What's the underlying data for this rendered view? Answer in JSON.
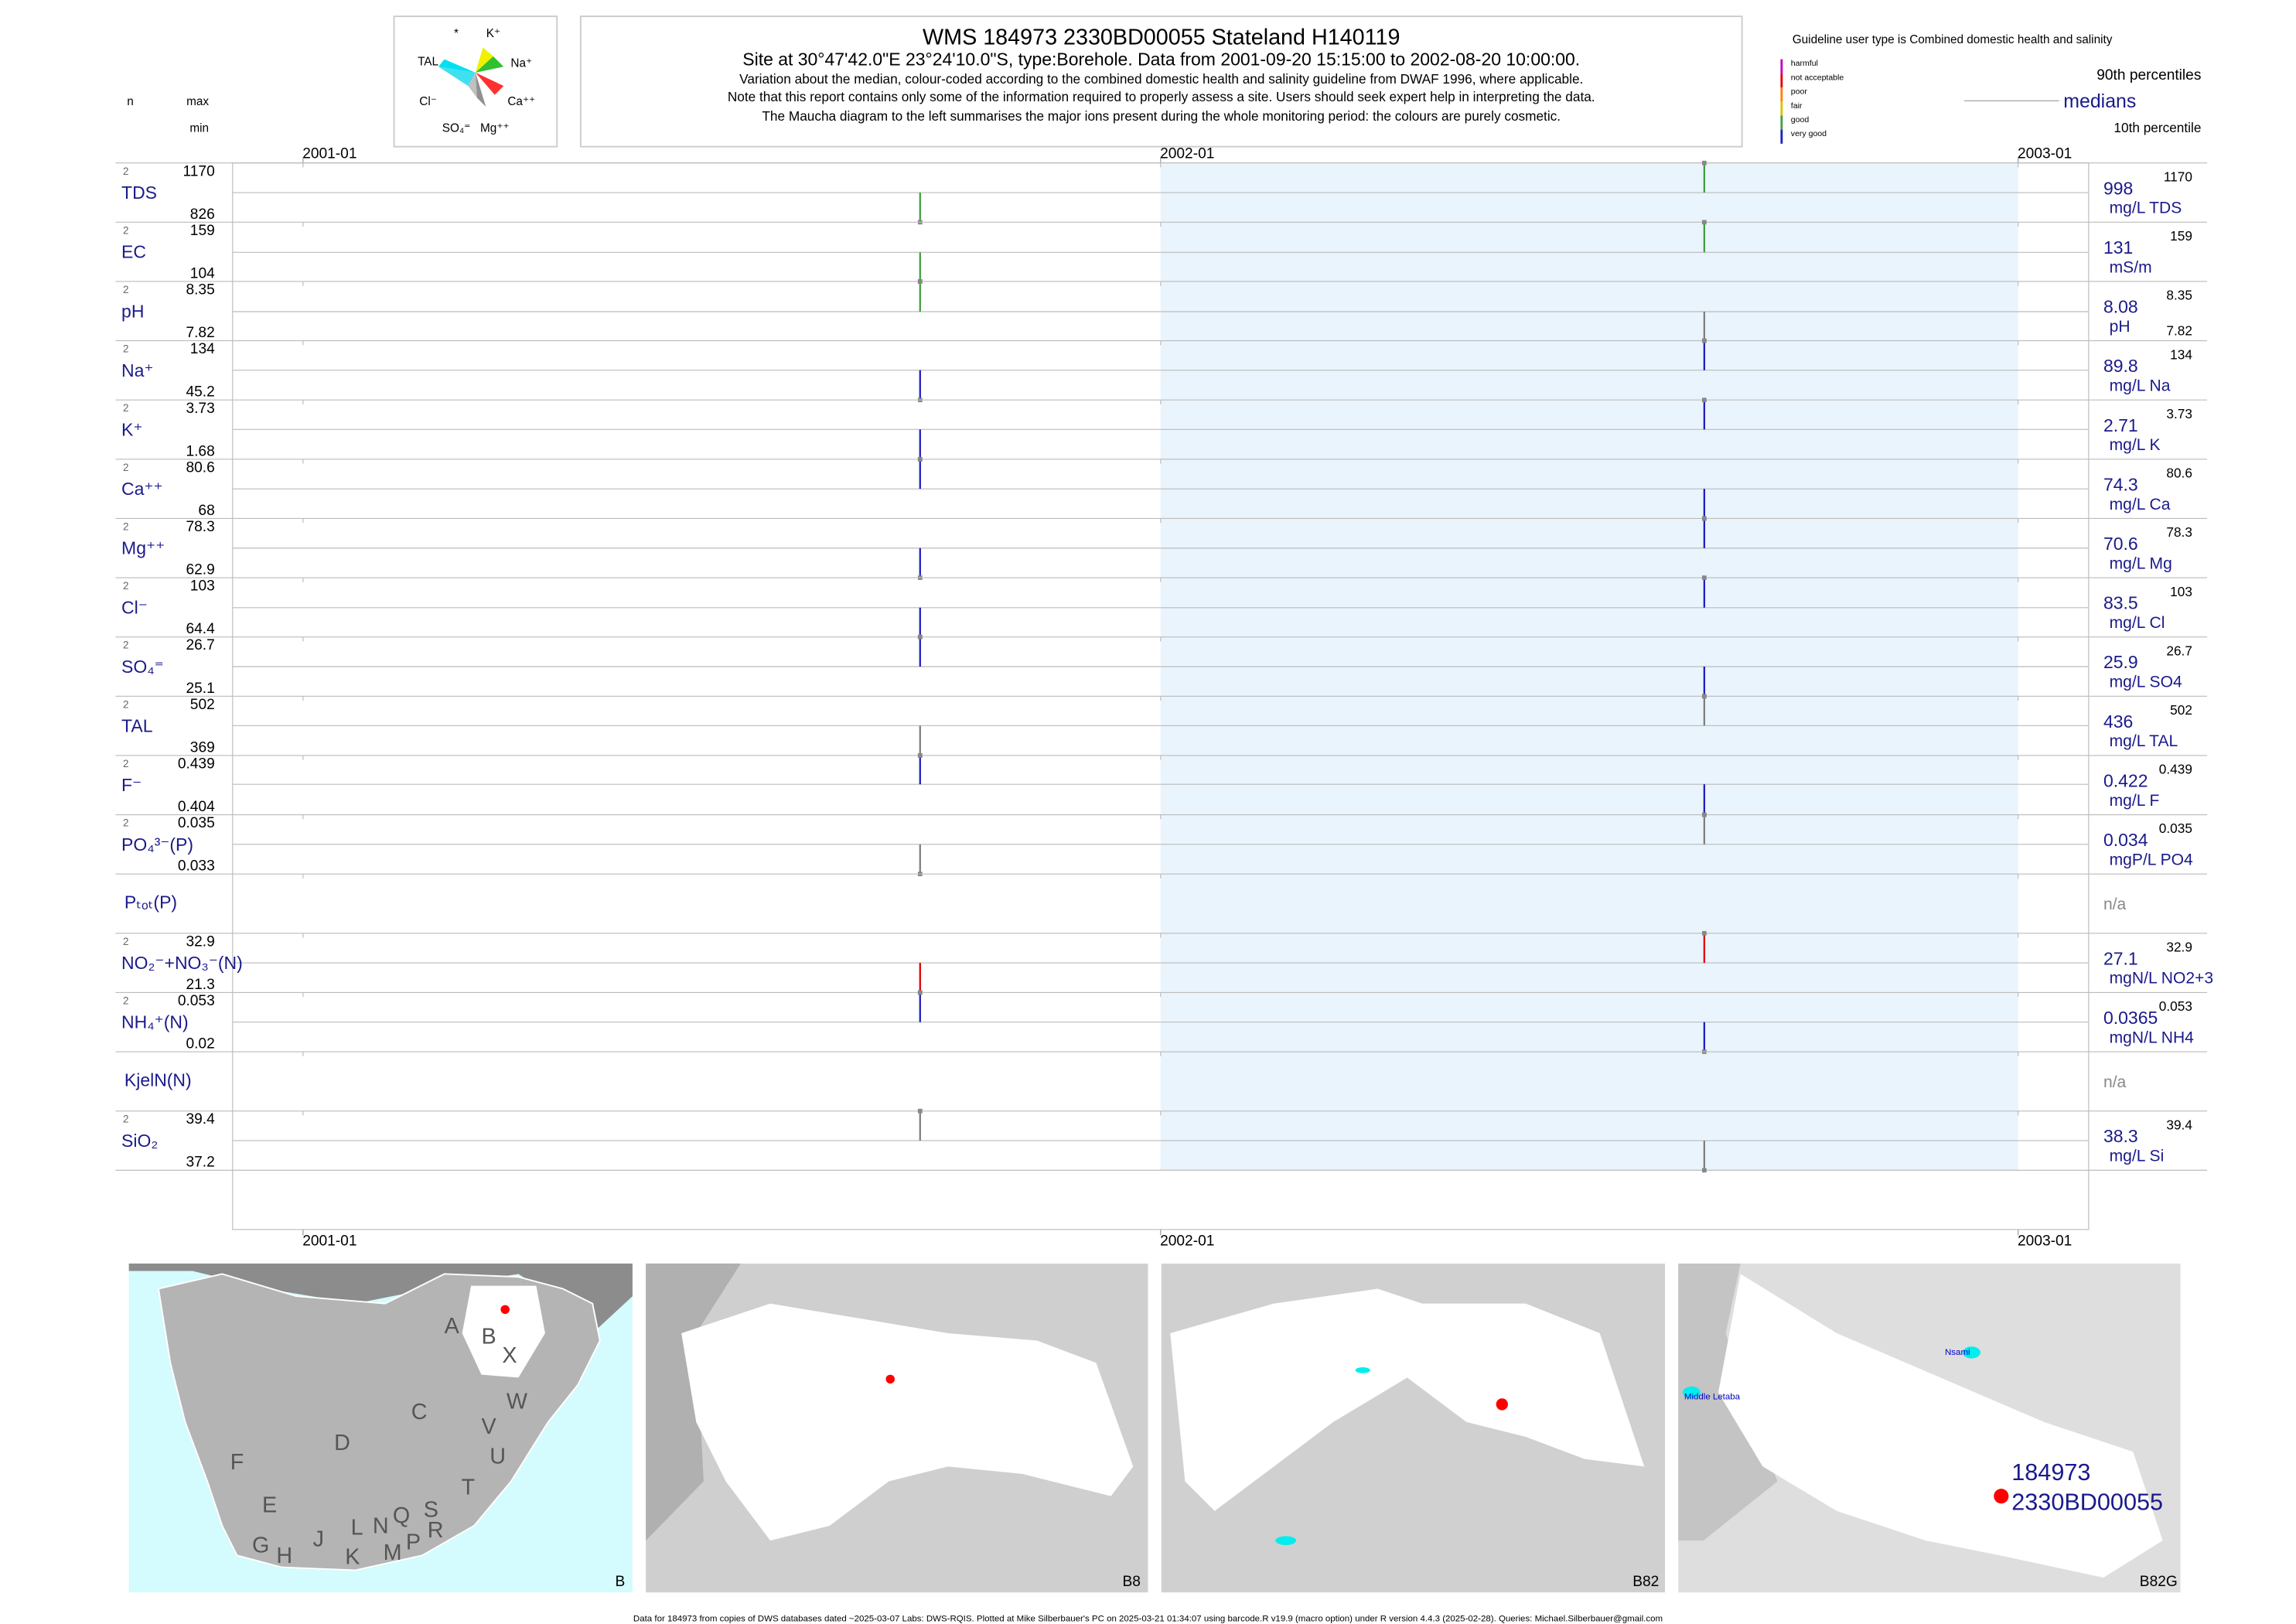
{
  "header": {
    "title": "WMS 184973 2330BD00055 Stateland H140119",
    "site": "Site at 30°47'42.0\"E 23°24'10.0\"S, type:Borehole.  Data from 2001-09-20 15:15:00 to 2002-08-20 10:00:00.",
    "lines": [
      "Variation about the median,  colour-coded according to the combined domestic health and salinity guideline from DWAF 1996, where applicable.",
      "Note that this report contains only some of the information required to properly assess a site. Users should seek expert help in interpreting the data.",
      "The Maucha diagram to the left summarises the major ions present during the whole monitoring period: the colours are purely cosmetic."
    ]
  },
  "maucha": {
    "labels": [
      "*",
      "K⁺",
      "TAL",
      "Na⁺",
      "Cl⁻",
      "Ca⁺⁺",
      "SO₄⁼",
      "Mg⁺⁺"
    ]
  },
  "columns": {
    "n": "n",
    "max": "max",
    "min": "min"
  },
  "guideline": {
    "title": "Guideline user type is Combined domestic health and salinity",
    "classes": [
      {
        "name": "harmful",
        "color": "#c000c0"
      },
      {
        "name": "not acceptable",
        "color": "#e00000"
      },
      {
        "name": "poor",
        "color": "#ff8000"
      },
      {
        "name": "fair",
        "color": "#e0c000"
      },
      {
        "name": "good",
        "color": "#40a040"
      },
      {
        "name": "very good",
        "color": "#2020c0"
      }
    ],
    "p90": "90th percentiles",
    "median": "medians",
    "p10": "10th percentile"
  },
  "time_axis": {
    "xlim": [
      "2000-12-02",
      "2003-01-31"
    ],
    "ticks": [
      {
        "value": "2001-01-01",
        "label": "2001-01"
      },
      {
        "value": "2002-01-01",
        "label": "2002-01"
      },
      {
        "value": "2003-01-01",
        "label": "2003-01"
      }
    ],
    "highlight": [
      "2002-01-01",
      "2003-01-01"
    ]
  },
  "dates": [
    "2001-09-20 15:15:00",
    "2002-08-20 10:00:00"
  ],
  "rows": [
    {
      "label": "TDS",
      "n": 2,
      "max": 1170,
      "min": 826,
      "median": 998,
      "unit": "mg/L TDS",
      "values": [
        826,
        1170
      ],
      "colors": [
        "#40a040",
        "#40a040"
      ]
    },
    {
      "label": "EC",
      "n": 2,
      "max": 159,
      "min": 104,
      "median": 131,
      "unit": "mS/m",
      "values": [
        104,
        159
      ],
      "colors": [
        "#40a040",
        "#40a040"
      ]
    },
    {
      "label": "pH",
      "n": 2,
      "max": 8.35,
      "min": 7.82,
      "median": 8.08,
      "unit": "pH",
      "values": [
        8.35,
        7.82
      ],
      "colors": [
        "#40a040",
        "#808080"
      ],
      "min_right": true
    },
    {
      "label": "Na⁺",
      "n": 2,
      "max": 134,
      "min": 45.2,
      "median": 89.8,
      "unit": "mg/L Na",
      "values": [
        45.2,
        134
      ],
      "colors": [
        "#2020c0",
        "#2020c0"
      ]
    },
    {
      "label": "K⁺",
      "n": 2,
      "max": 3.73,
      "min": 1.68,
      "median": 2.71,
      "unit": "mg/L K",
      "values": [
        1.68,
        3.73
      ],
      "colors": [
        "#2020c0",
        "#2020c0"
      ]
    },
    {
      "label": "Ca⁺⁺",
      "n": 2,
      "max": 80.6,
      "min": 68,
      "median": 74.3,
      "unit": "mg/L Ca",
      "values": [
        80.6,
        68
      ],
      "colors": [
        "#2020c0",
        "#2020c0"
      ]
    },
    {
      "label": "Mg⁺⁺",
      "n": 2,
      "max": 78.3,
      "min": 62.9,
      "median": 70.6,
      "unit": "mg/L Mg",
      "values": [
        62.9,
        78.3
      ],
      "colors": [
        "#2020c0",
        "#2020c0"
      ]
    },
    {
      "label": "Cl⁻",
      "n": 2,
      "max": 103,
      "min": 64.4,
      "median": 83.5,
      "unit": "mg/L Cl",
      "values": [
        64.4,
        103
      ],
      "colors": [
        "#2020c0",
        "#2020c0"
      ]
    },
    {
      "label": "SO₄⁼",
      "n": 2,
      "max": 26.7,
      "min": 25.1,
      "median": 25.9,
      "unit": "mg/L SO4",
      "values": [
        26.7,
        25.1
      ],
      "colors": [
        "#2020c0",
        "#2020c0"
      ]
    },
    {
      "label": "TAL",
      "n": 2,
      "max": 502,
      "min": 369,
      "median": 436,
      "unit": "mg/L TAL",
      "values": [
        369,
        502
      ],
      "colors": [
        "#808080",
        "#808080"
      ]
    },
    {
      "label": "F⁻",
      "n": 2,
      "max": 0.439,
      "min": 0.404,
      "median": 0.422,
      "unit": "mg/L F",
      "values": [
        0.439,
        0.404
      ],
      "colors": [
        "#2020c0",
        "#2020c0"
      ]
    },
    {
      "label": "PO₄³⁻(P)",
      "n": 2,
      "max": 0.035,
      "min": 0.033,
      "median": 0.034,
      "unit": "mgP/L PO4",
      "values": [
        0.033,
        0.035
      ],
      "colors": [
        "#808080",
        "#808080"
      ]
    },
    {
      "label": "Pₜₒₜ(P)",
      "na": "n/a"
    },
    {
      "label": "NO₂⁻+NO₃⁻(N)",
      "n": 2,
      "max": 32.9,
      "min": 21.3,
      "median": 27.1,
      "unit": "mgN/L NO2+3",
      "values": [
        21.3,
        32.9
      ],
      "colors": [
        "#e00000",
        "#e00000"
      ]
    },
    {
      "label": "NH₄⁺(N)",
      "n": 2,
      "max": 0.053,
      "min": 0.02,
      "median": 0.0365,
      "unit": "mgN/L NH4",
      "values": [
        0.053,
        0.02
      ],
      "colors": [
        "#2020c0",
        "#2020c0"
      ]
    },
    {
      "label": "KjelN(N)",
      "na": "n/a"
    },
    {
      "label": "SiO₂",
      "n": 2,
      "max": 39.4,
      "min": 37.2,
      "median": 38.3,
      "unit": "mg/L Si",
      "values": [
        39.4,
        37.2
      ],
      "colors": [
        "#808080",
        "#808080"
      ]
    }
  ],
  "maps": [
    {
      "name": "B",
      "regions": [
        "A",
        "B",
        "X",
        "C",
        "W",
        "D",
        "V",
        "U",
        "F",
        "T",
        "E",
        "S",
        "G",
        "H",
        "J",
        "L",
        "N",
        "Q",
        "M",
        "P",
        "R",
        "K"
      ]
    },
    {
      "name": "B8"
    },
    {
      "name": "B82"
    },
    {
      "name": "B82G",
      "places": [
        "Middle Letaba",
        "Nsami"
      ],
      "site": [
        "184973",
        "2330BD00055"
      ]
    }
  ],
  "footer": "Data for 184973 from copies of DWS databases dated ~2025-03-07 Labs: DWS-RQIS. Plotted at Mike Silberbauer's PC on 2025-03-21 01:34:07 using barcode.R v19.9 (macro option) under R version 4.4.3 (2025-02-28). Queries: Michael.Silberbauer@gmail.com"
}
